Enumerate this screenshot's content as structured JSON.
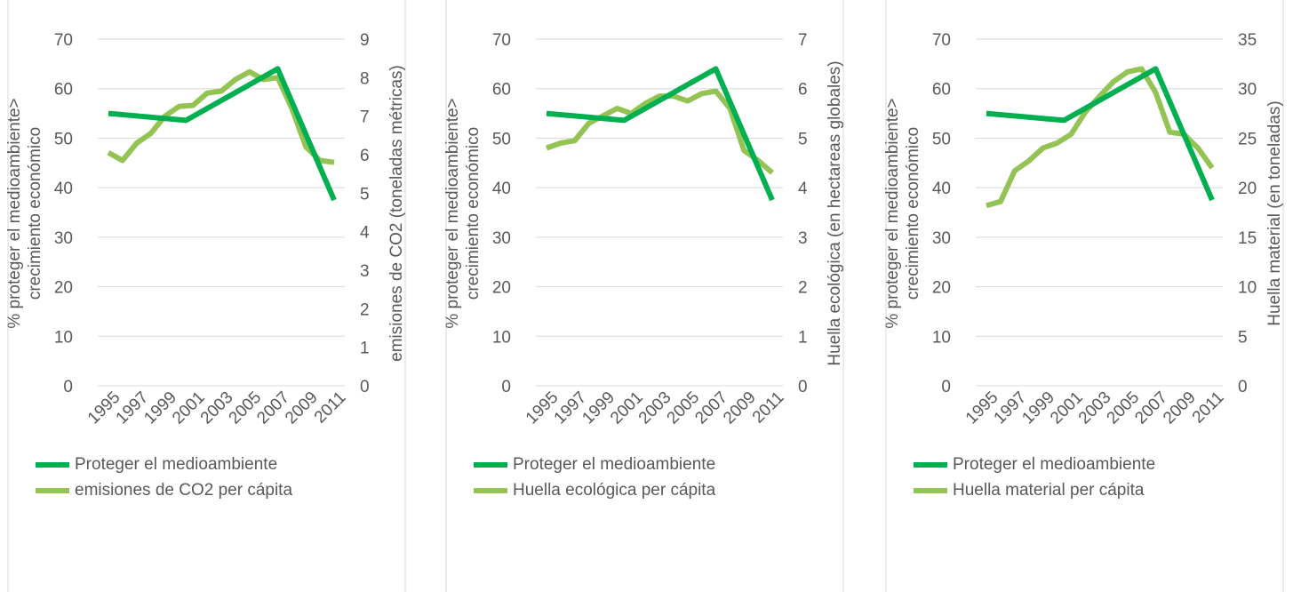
{
  "colors": {
    "series1": "#00b050",
    "series2": "#92c353"
  },
  "chart_data": [
    {
      "type": "line",
      "x": [
        1995,
        1996,
        1997,
        1998,
        1999,
        2000,
        2001,
        2002,
        2003,
        2004,
        2005,
        2006,
        2007,
        2008,
        2009,
        2010,
        2011
      ],
      "x_tick_labels": [
        "1995",
        "1997",
        "1999",
        "2001",
        "2003",
        "2005",
        "2007",
        "2009",
        "2011"
      ],
      "ylabel_left_line1": "% proteger el medioambiente>",
      "ylabel_left_line2": "crecimiento económico",
      "ylabel_right": "emisiones de CO2 (toneladas métricas)",
      "ylim_left": [
        0,
        70
      ],
      "ylim_right": [
        0,
        9
      ],
      "yticks_left": [
        "0",
        "10",
        "20",
        "30",
        "40",
        "50",
        "60",
        "70"
      ],
      "yticks_right": [
        "0",
        "1",
        "2",
        "3",
        "4",
        "5",
        "6",
        "7",
        "8",
        "9"
      ],
      "grid": true,
      "legend_position": "bottom",
      "series": [
        {
          "name": "Proteger el medioambiente",
          "axis": "left",
          "color": "series1",
          "points": [
            [
              1995,
              55.0
            ],
            [
              2000.5,
              53.6
            ],
            [
              2007,
              64.0
            ],
            [
              2011,
              37.5
            ]
          ]
        },
        {
          "name": "emisiones de CO2 per cápita",
          "axis": "right",
          "color": "series2",
          "points": [
            [
              1995,
              6.05
            ],
            [
              1996,
              5.85
            ],
            [
              1997,
              6.3
            ],
            [
              1998,
              6.55
            ],
            [
              1999,
              7.0
            ],
            [
              2000,
              7.25
            ],
            [
              2001,
              7.28
            ],
            [
              2002,
              7.6
            ],
            [
              2003,
              7.65
            ],
            [
              2004,
              7.95
            ],
            [
              2005,
              8.15
            ],
            [
              2006,
              7.95
            ],
            [
              2007,
              8.0
            ],
            [
              2008,
              7.2
            ],
            [
              2009,
              6.2
            ],
            [
              2010,
              5.85
            ],
            [
              2011,
              5.8
            ]
          ]
        }
      ]
    },
    {
      "type": "line",
      "x": [
        1995,
        1996,
        1997,
        1998,
        1999,
        2000,
        2001,
        2002,
        2003,
        2004,
        2005,
        2006,
        2007,
        2008,
        2009,
        2010,
        2011
      ],
      "x_tick_labels": [
        "1995",
        "1997",
        "1999",
        "2001",
        "2003",
        "2005",
        "2007",
        "2009",
        "2011"
      ],
      "ylabel_left_line1": "% proteger el medioambiente>",
      "ylabel_left_line2": "crecimiento económico",
      "ylabel_right": "Huella ecológica (en hectareas globales)",
      "ylim_left": [
        0,
        70
      ],
      "ylim_right": [
        0,
        7
      ],
      "yticks_left": [
        "0",
        "10",
        "20",
        "30",
        "40",
        "50",
        "60",
        "70"
      ],
      "yticks_right": [
        "0",
        "1",
        "2",
        "3",
        "4",
        "5",
        "6",
        "7"
      ],
      "grid": true,
      "legend_position": "bottom",
      "series": [
        {
          "name": "Proteger el medioambiente",
          "axis": "left",
          "color": "series1",
          "points": [
            [
              1995,
              55.0
            ],
            [
              2000.5,
              53.6
            ],
            [
              2007,
              64.0
            ],
            [
              2011,
              37.5
            ]
          ]
        },
        {
          "name": "Huella ecológica per cápita",
          "axis": "right",
          "color": "series2",
          "points": [
            [
              1995,
              4.8
            ],
            [
              1996,
              4.9
            ],
            [
              1997,
              4.95
            ],
            [
              1998,
              5.3
            ],
            [
              1999,
              5.45
            ],
            [
              2000,
              5.6
            ],
            [
              2001,
              5.5
            ],
            [
              2002,
              5.7
            ],
            [
              2003,
              5.85
            ],
            [
              2004,
              5.85
            ],
            [
              2005,
              5.75
            ],
            [
              2006,
              5.9
            ],
            [
              2007,
              5.95
            ],
            [
              2008,
              5.6
            ],
            [
              2009,
              4.75
            ],
            [
              2010,
              4.55
            ],
            [
              2011,
              4.3
            ]
          ]
        }
      ]
    },
    {
      "type": "line",
      "x": [
        1995,
        1996,
        1997,
        1998,
        1999,
        2000,
        2001,
        2002,
        2003,
        2004,
        2005,
        2006,
        2007,
        2008,
        2009,
        2010,
        2011
      ],
      "x_tick_labels": [
        "1995",
        "1997",
        "1999",
        "2001",
        "2003",
        "2005",
        "2007",
        "2009",
        "2011"
      ],
      "ylabel_left_line1": "% proteger el medioambiente>",
      "ylabel_left_line2": "crecimiento económico",
      "ylabel_right": "Huella material (en toneladas)",
      "ylim_left": [
        0,
        70
      ],
      "ylim_right": [
        0,
        35
      ],
      "yticks_left": [
        "0",
        "10",
        "20",
        "30",
        "40",
        "50",
        "60",
        "70"
      ],
      "yticks_right": [
        "0",
        "5",
        "10",
        "15",
        "20",
        "25",
        "30",
        "35"
      ],
      "grid": true,
      "legend_position": "bottom",
      "series": [
        {
          "name": "Proteger el medioambiente",
          "axis": "left",
          "color": "series1",
          "points": [
            [
              1995,
              55.0
            ],
            [
              2000.5,
              53.6
            ],
            [
              2007,
              64.0
            ],
            [
              2011,
              37.5
            ]
          ]
        },
        {
          "name": "Huella material per cápita",
          "axis": "right",
          "color": "series2",
          "points": [
            [
              1995,
              18.2
            ],
            [
              1996,
              18.6
            ],
            [
              1997,
              21.7
            ],
            [
              1998,
              22.7
            ],
            [
              1999,
              24.0
            ],
            [
              2000,
              24.5
            ],
            [
              2001,
              25.4
            ],
            [
              2002,
              27.6
            ],
            [
              2003,
              29.2
            ],
            [
              2004,
              30.7
            ],
            [
              2005,
              31.7
            ],
            [
              2006,
              32.0
            ],
            [
              2007,
              29.6
            ],
            [
              2008,
              25.6
            ],
            [
              2009,
              25.4
            ],
            [
              2010,
              24.0
            ],
            [
              2011,
              22.0
            ]
          ]
        }
      ]
    }
  ]
}
